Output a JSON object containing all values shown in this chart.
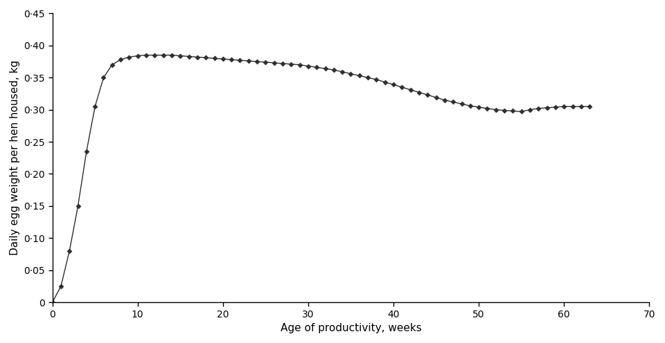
{
  "xlabel": "Age of productivity, weeks",
  "ylabel": "Daily egg weight per hen housed, kg",
  "xlim": [
    0,
    70
  ],
  "ylim": [
    0,
    0.45
  ],
  "xticks": [
    0,
    10,
    20,
    30,
    40,
    50,
    60,
    70
  ],
  "yticks": [
    0,
    0.05,
    0.1,
    0.15,
    0.2,
    0.25,
    0.3,
    0.35,
    0.4,
    0.45
  ],
  "ytick_labels": [
    "0",
    "0·05",
    "0·10",
    "0·15",
    "0·20",
    "0·25",
    "0·30",
    "0·35",
    "0·40",
    "0·45"
  ],
  "line_color": "#2d2d2d",
  "marker": "D",
  "marker_size": 3.5,
  "marker_color": "#2d2d2d",
  "background_color": "#ffffff",
  "x": [
    0,
    1,
    2,
    3,
    4,
    5,
    6,
    7,
    8,
    9,
    10,
    11,
    12,
    13,
    14,
    15,
    16,
    17,
    18,
    19,
    20,
    21,
    22,
    23,
    24,
    25,
    26,
    27,
    28,
    29,
    30,
    31,
    32,
    33,
    34,
    35,
    36,
    37,
    38,
    39,
    40,
    41,
    42,
    43,
    44,
    45,
    46,
    47,
    48,
    49,
    50,
    51,
    52,
    53,
    54,
    55,
    56,
    57,
    58,
    59,
    60,
    61,
    62,
    63
  ],
  "y": [
    0.0,
    0.025,
    0.08,
    0.15,
    0.235,
    0.305,
    0.35,
    0.37,
    0.378,
    0.382,
    0.384,
    0.385,
    0.385,
    0.385,
    0.385,
    0.384,
    0.383,
    0.382,
    0.381,
    0.38,
    0.379,
    0.378,
    0.377,
    0.376,
    0.375,
    0.374,
    0.373,
    0.372,
    0.371,
    0.37,
    0.368,
    0.366,
    0.364,
    0.362,
    0.359,
    0.356,
    0.353,
    0.35,
    0.347,
    0.343,
    0.339,
    0.335,
    0.331,
    0.327,
    0.323,
    0.319,
    0.315,
    0.312,
    0.309,
    0.306,
    0.304,
    0.302,
    0.3,
    0.299,
    0.298,
    0.297,
    0.3,
    0.302,
    0.303,
    0.304,
    0.305,
    0.305,
    0.305,
    0.305
  ]
}
